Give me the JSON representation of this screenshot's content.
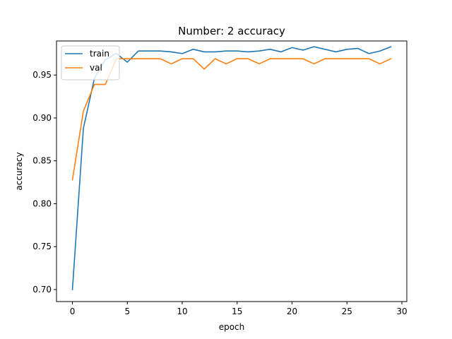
{
  "chart_data": {
    "type": "line",
    "title": "Number: 2 accuracy",
    "xlabel": "epoch",
    "ylabel": "accuracy",
    "xlim": [
      -1.45,
      30.45
    ],
    "ylim": [
      0.686,
      0.9897
    ],
    "xticks": [
      0,
      5,
      10,
      15,
      20,
      25,
      30
    ],
    "yticks": [
      0.7,
      0.75,
      0.8,
      0.85,
      0.9,
      0.95
    ],
    "ytick_labels": [
      "0.70",
      "0.75",
      "0.80",
      "0.85",
      "0.90",
      "0.95"
    ],
    "grid": false,
    "legend": "upper left",
    "x": [
      0,
      1,
      2,
      3,
      4,
      5,
      6,
      7,
      8,
      9,
      10,
      11,
      12,
      13,
      14,
      15,
      16,
      17,
      18,
      19,
      20,
      21,
      22,
      23,
      24,
      25,
      26,
      27,
      28,
      29
    ],
    "series": [
      {
        "name": "train",
        "color": "#1f77b4",
        "values": [
          0.7,
          0.888,
          0.946,
          0.968,
          0.975,
          0.965,
          0.978,
          0.978,
          0.978,
          0.977,
          0.975,
          0.98,
          0.977,
          0.977,
          0.978,
          0.978,
          0.977,
          0.978,
          0.98,
          0.977,
          0.982,
          0.979,
          0.983,
          0.98,
          0.977,
          0.98,
          0.981,
          0.975,
          0.978,
          0.983
        ]
      },
      {
        "name": "val",
        "color": "#ff7f0e",
        "values": [
          0.828,
          0.908,
          0.939,
          0.939,
          0.969,
          0.969,
          0.969,
          0.969,
          0.969,
          0.963,
          0.969,
          0.969,
          0.957,
          0.969,
          0.963,
          0.969,
          0.969,
          0.963,
          0.969,
          0.969,
          0.969,
          0.969,
          0.963,
          0.969,
          0.969,
          0.969,
          0.969,
          0.969,
          0.963,
          0.969
        ]
      }
    ]
  }
}
